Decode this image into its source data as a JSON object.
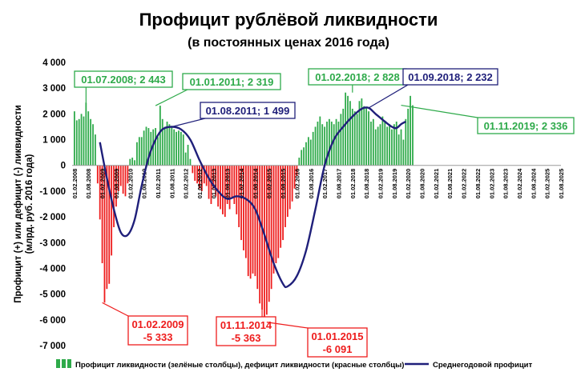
{
  "chart_data": {
    "type": "bar",
    "title": "Профицит рублёвой ликвидности",
    "subtitle": "(в постоянных ценах 2016 года)",
    "xlabel": "",
    "ylabel": "Профицит (+) или дефицит (-) ликвидности (млрд. руб. 2016 года)",
    "ylim": [
      -7000,
      4000
    ],
    "yticks": [
      4000,
      3000,
      2000,
      1000,
      0,
      -1000,
      -2000,
      -3000,
      -4000,
      -5000,
      -6000,
      -7000
    ],
    "ytick_labels": [
      "4 000",
      "3 000",
      "2 000",
      "1 000",
      "0",
      "-1 000",
      "-2 000",
      "-3 000",
      "-4 000",
      "-5 000",
      "-6 000",
      "-7 000"
    ],
    "x_start": "2008-01",
    "x_end": "2025-08",
    "xtick_labels": [
      "01.02.2008",
      "01.08.2008",
      "01.02.2009",
      "01.08.2009",
      "01.02.2010",
      "01.08.2010",
      "01.02.2011",
      "01.08.2011",
      "01.02.2012",
      "01.08.2012",
      "01.02.2013",
      "01.08.2013",
      "01.02.2014",
      "01.08.2014",
      "01.02.2015",
      "01.08.2015",
      "01.02.2016",
      "01.08.2016",
      "01.02.2017",
      "01.08.2017",
      "01.02.2018",
      "01.08.2018",
      "01.02.2019",
      "01.08.2019",
      "01.02.2020",
      "01.08.2020",
      "01.02.2021",
      "01.08.2021",
      "01.02.2022",
      "01.08.2022",
      "01.02.2023",
      "01.08.2023",
      "01.02.2024",
      "01.08.2024",
      "01.02.2025",
      "01.08.2025"
    ],
    "colors": {
      "positive": "#2eaa4a",
      "negative": "#ee1c1c",
      "line": "#1f1f7a"
    },
    "series": [
      {
        "name": "Профицит ликвидности (зелёные столбцы), дефицит ликвидности (красные столбцы)",
        "kind": "bar",
        "x_start": "2008-02",
        "values": [
          2100,
          1750,
          1800,
          2000,
          1900,
          2443,
          2100,
          1800,
          1600,
          1200,
          -700,
          -2100,
          -3800,
          -5333,
          -4800,
          -4600,
          -3500,
          -2400,
          -1600,
          -1000,
          -800,
          -1100,
          -1200,
          -700,
          250,
          300,
          200,
          900,
          1100,
          1100,
          1350,
          1500,
          1450,
          1300,
          1400,
          1450,
          1100,
          2319,
          1800,
          1500,
          1700,
          1600,
          1499,
          1400,
          1300,
          1350,
          1300,
          1200,
          500,
          800,
          250,
          -300,
          -600,
          -700,
          -900,
          -1000,
          -700,
          -800,
          -1300,
          -1500,
          -900,
          -1200,
          -1600,
          -1700,
          -1900,
          -2000,
          -1500,
          -1700,
          -1300,
          -1500,
          -1900,
          -2400,
          -2900,
          -3300,
          -3600,
          -4300,
          -4400,
          -4200,
          -4300,
          -4800,
          -5363,
          -5600,
          -6091,
          -5800,
          -5300,
          -4800,
          -4200,
          -3800,
          -3600,
          -3200,
          -2900,
          -2400,
          -2000,
          -1700,
          -1400,
          -900,
          -400,
          300,
          600,
          700,
          900,
          1100,
          1000,
          1300,
          1500,
          1700,
          1900,
          1600,
          1500,
          1700,
          1800,
          1700,
          1600,
          1800,
          1700,
          2000,
          2200,
          2828,
          2700,
          2500,
          2200,
          2100,
          2000,
          2500,
          2600,
          2300,
          2232,
          2100,
          1700,
          1800,
          1400,
          1500,
          1600,
          1900,
          1700,
          1500,
          1600,
          1400,
          1600,
          1700,
          1200,
          1400,
          1000,
          1800,
          2200,
          2700,
          2336
        ]
      },
      {
        "name": "Среднегодовой профицит",
        "kind": "line",
        "points": [
          [
            "2009-01",
            900
          ],
          [
            "2009-04",
            -500
          ],
          [
            "2009-07",
            -1700
          ],
          [
            "2009-10",
            -2600
          ],
          [
            "2010-01",
            -2700
          ],
          [
            "2010-04",
            -2100
          ],
          [
            "2010-07",
            -800
          ],
          [
            "2010-10",
            300
          ],
          [
            "2011-01",
            1000
          ],
          [
            "2011-04",
            1400
          ],
          [
            "2011-08",
            1499
          ],
          [
            "2011-12",
            1400
          ],
          [
            "2012-04",
            1000
          ],
          [
            "2012-08",
            200
          ],
          [
            "2012-12",
            -500
          ],
          [
            "2013-04",
            -1000
          ],
          [
            "2013-08",
            -1300
          ],
          [
            "2013-12",
            -1200
          ],
          [
            "2014-04",
            -1300
          ],
          [
            "2014-08",
            -1700
          ],
          [
            "2014-12",
            -2700
          ],
          [
            "2015-04",
            -3800
          ],
          [
            "2015-08",
            -4600
          ],
          [
            "2015-10",
            -4700
          ],
          [
            "2016-02",
            -4300
          ],
          [
            "2016-06",
            -3300
          ],
          [
            "2016-10",
            -1700
          ],
          [
            "2017-02",
            0
          ],
          [
            "2017-06",
            1000
          ],
          [
            "2017-10",
            1500
          ],
          [
            "2018-02",
            1900
          ],
          [
            "2018-06",
            2200
          ],
          [
            "2018-09",
            2232
          ],
          [
            "2018-12",
            2000
          ],
          [
            "2019-04",
            1700
          ],
          [
            "2019-07",
            1500
          ],
          [
            "2019-09",
            1450
          ],
          [
            "2019-11",
            1600
          ],
          [
            "2020-01",
            1700
          ]
        ]
      }
    ],
    "callouts": [
      {
        "lines": [
          "01.07.2008; 2 443"
        ],
        "style": "green",
        "at": "2008-07",
        "value": 2443
      },
      {
        "lines": [
          "01.01.2011; 2 319"
        ],
        "style": "green",
        "at": "2011-01",
        "value": 2319
      },
      {
        "lines": [
          "01.08.2011; 1 499"
        ],
        "style": "navy",
        "at": "2011-08",
        "value": 1499
      },
      {
        "lines": [
          "01.02.2018; 2 828"
        ],
        "style": "green",
        "at": "2018-02",
        "value": 2828
      },
      {
        "lines": [
          "01.09.2018; 2 232"
        ],
        "style": "navy",
        "at": "2018-09",
        "value": 2232
      },
      {
        "lines": [
          "01.11.2019; 2 336"
        ],
        "style": "green",
        "at": "2019-11",
        "value": 2336
      },
      {
        "lines": [
          "01.02.2009",
          "-5 333"
        ],
        "style": "red",
        "at": "2009-02",
        "value": -5333
      },
      {
        "lines": [
          "01.11.2014",
          "-5 363"
        ],
        "style": "red",
        "at": "2014-11",
        "value": -5363
      },
      {
        "lines": [
          "01.01.2015",
          "-6 091"
        ],
        "style": "red",
        "at": "2015-01",
        "value": -6091
      }
    ],
    "legend": {
      "position": "bottom",
      "bars_label": "Профицит ликвидности (зелёные столбцы), дефицит ликвидности (красные столбцы)",
      "line_label": "Среднегодовой профицит"
    },
    "grid": false
  }
}
